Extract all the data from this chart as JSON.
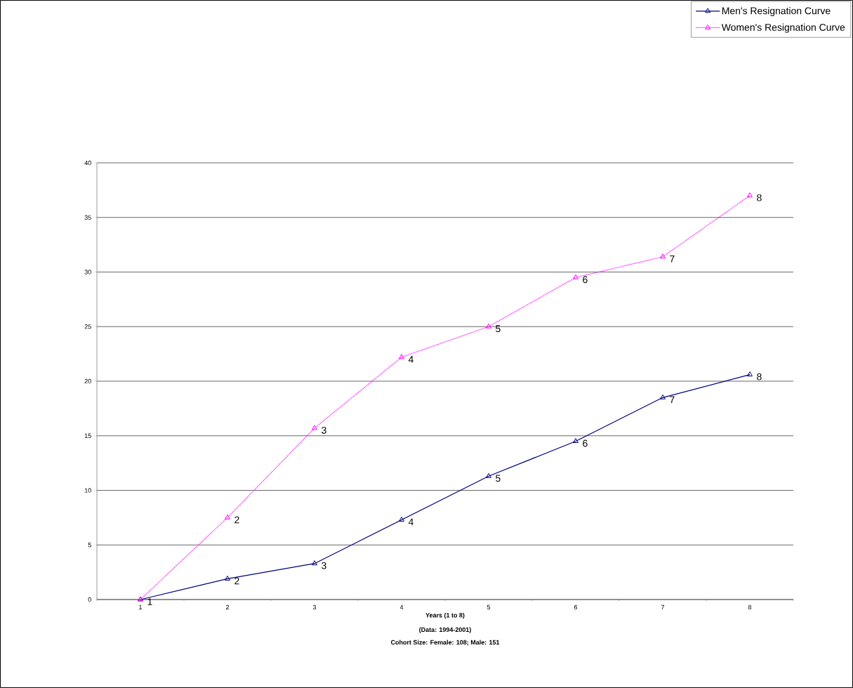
{
  "chart_data": {
    "type": "line",
    "xlabel": "Years (1 to 8)",
    "annotations": [
      "(Data: 1994-2001)",
      "Cohort Size: Female: 108; Male: 151",
      {
        "text": "1",
        "x": "1",
        "y": 0
      },
      {
        "text": "2",
        "x": "2",
        "y": 1.9
      },
      {
        "text": "3",
        "x": "3",
        "y": 3.3
      },
      {
        "text": "4",
        "x": "4",
        "y": 7.3
      },
      {
        "text": "5",
        "x": "5",
        "y": 11.3
      },
      {
        "text": "6",
        "x": "6",
        "y": 14.5
      },
      {
        "text": "7",
        "x": "7",
        "y": 18.5
      },
      {
        "text": "8",
        "x": "8",
        "y": 20.6
      },
      {
        "text": "2",
        "x": "2",
        "y": 7.5
      },
      {
        "text": "3",
        "x": "3",
        "y": 15.7
      },
      {
        "text": "4",
        "x": "4",
        "y": 22.2
      },
      {
        "text": "5",
        "x": "5",
        "y": 25
      },
      {
        "text": "6",
        "x": "6",
        "y": 29.5
      },
      {
        "text": "7",
        "x": "7",
        "y": 31.4
      },
      {
        "text": "8",
        "x": "8",
        "y": 37
      }
    ],
    "categories": [
      "1",
      "2",
      "3",
      "4",
      "5",
      "6",
      "7",
      "8"
    ],
    "series": [
      {
        "name": "Men's Resignation Curve",
        "color": "#000080",
        "line_style": "solid",
        "values": [
          0,
          1.9,
          3.3,
          7.3,
          11.3,
          14.5,
          18.5,
          20.6
        ]
      },
      {
        "name": "Women's Resignation Curve",
        "color": "#ff00ff",
        "line_style": "dotted",
        "values": [
          0,
          7.5,
          15.7,
          22.2,
          25,
          29.5,
          31.4,
          37
        ]
      }
    ],
    "ylim": [
      0,
      40
    ],
    "yticks": [
      0,
      5,
      10,
      15,
      20,
      25,
      30,
      35,
      40
    ],
    "grid": "y",
    "legend": "top right",
    "marker": "triangle"
  }
}
